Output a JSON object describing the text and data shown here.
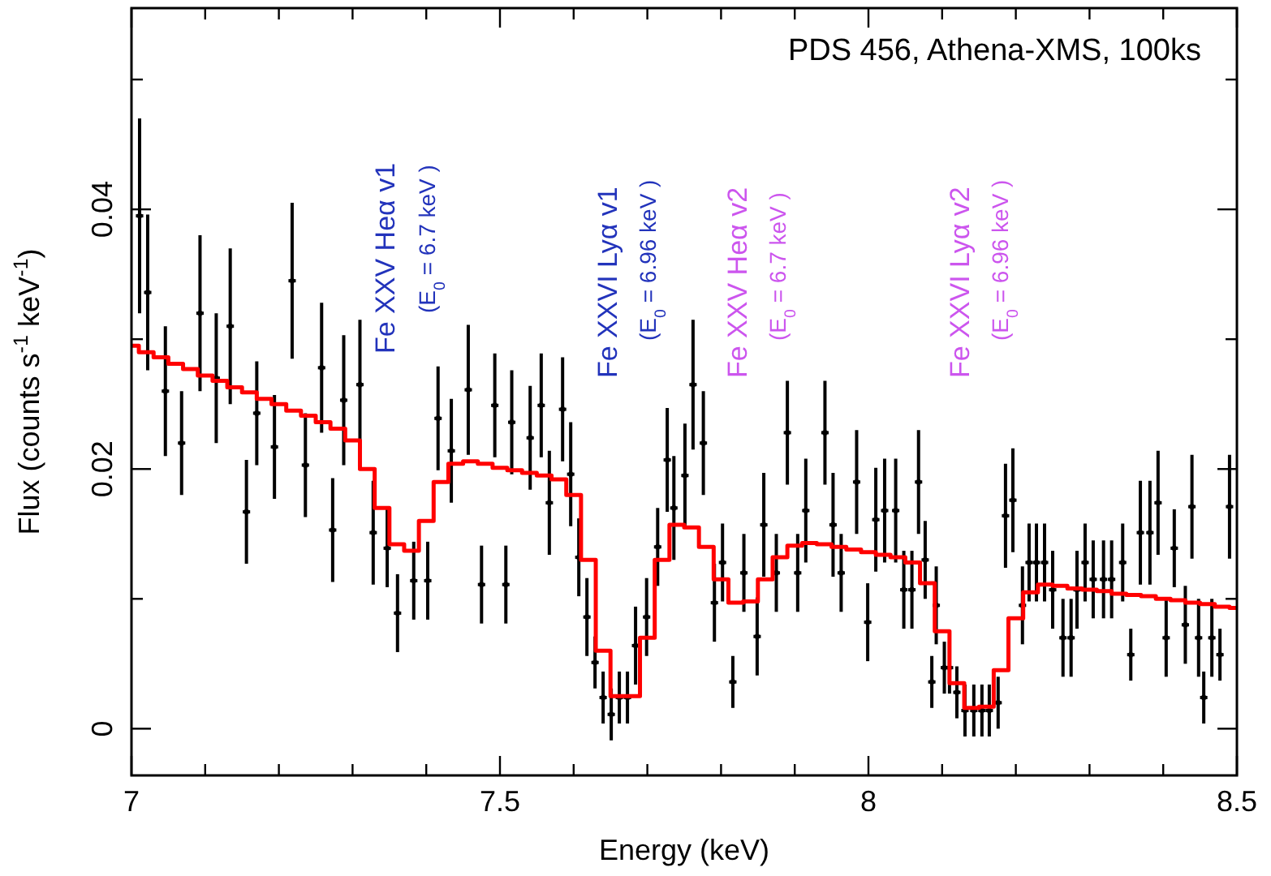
{
  "chart_data": {
    "type": "scatter",
    "title": "PDS 456, Athena-XMS, 100ks",
    "xlabel": "Energy (keV)",
    "ylabel": "Flux (counts s$^{-1}$ keV$^{-1}$)",
    "xlim": [
      7,
      8.5
    ],
    "ylim": [
      -0.0036,
      0.0555
    ],
    "xticks": [
      7,
      {
        "value": 7.1,
        "label": null
      },
      {
        "value": 7.2,
        "label": null
      },
      {
        "value": 7.3,
        "label": null
      },
      {
        "value": 7.4,
        "label": null
      },
      7.5,
      {
        "value": 7.6,
        "label": null
      },
      {
        "value": 7.7,
        "label": null
      },
      {
        "value": 7.8,
        "label": null
      },
      {
        "value": 7.9,
        "label": null
      },
      8,
      {
        "value": 8.1,
        "label": null
      },
      {
        "value": 8.2,
        "label": null
      },
      {
        "value": 8.3,
        "label": null
      },
      {
        "value": 8.4,
        "label": null
      },
      8.5
    ],
    "yticks": [
      0,
      {
        "value": 0.01,
        "label": null
      },
      0.02,
      {
        "value": 0.03,
        "label": null
      },
      0.04,
      {
        "value": 0.05,
        "label": null
      }
    ],
    "annotations": [
      "Fe XXV Heα v1",
      "(E$_{0}$ = 6.7 keV )",
      "Fe XXVI Lyα v1",
      "(E$_{0}$ = 6.96 keV )",
      "Fe XXV Heα v2",
      "(E$_{0}$ = 6.7 keV )",
      "Fe XXVI Lyα v2",
      "(E$_{0}$ = 6.96 keV )"
    ],
    "series": [
      {
        "color": "#000000",
        "marker": "cross",
        "x": [
          7.011,
          7.022,
          7.046,
          7.068,
          7.093,
          7.115,
          7.134,
          7.156,
          7.17,
          7.194,
          7.218,
          7.236,
          7.258,
          7.273,
          7.288,
          7.31,
          7.328,
          7.347,
          7.361,
          7.383,
          7.402,
          7.416,
          7.434,
          7.457,
          7.475,
          7.493,
          7.508,
          7.516,
          7.541,
          7.556,
          7.567,
          7.585,
          7.596,
          7.607,
          7.618,
          7.629,
          7.64,
          7.651,
          7.662,
          7.673,
          7.684,
          7.699,
          7.714,
          7.727,
          7.736,
          7.751,
          7.762,
          7.776,
          7.791,
          7.802,
          7.816,
          7.831,
          7.849,
          7.858,
          7.875,
          7.89,
          7.904,
          7.915,
          7.941,
          7.952,
          7.963,
          7.984,
          7.999,
          8.01,
          8.022,
          8.037,
          8.048,
          8.059,
          8.068,
          8.077,
          8.086,
          8.092,
          8.103,
          8.11,
          8.12,
          8.131,
          8.143,
          8.154,
          8.164,
          8.176,
          8.186,
          8.196,
          8.209,
          8.218,
          8.228,
          8.239,
          8.25,
          8.264,
          8.275,
          8.283,
          8.294,
          8.305,
          8.319,
          8.33,
          8.345,
          8.356,
          8.369,
          8.382,
          8.393,
          8.404,
          8.415,
          8.43,
          8.439,
          8.448,
          8.455,
          8.466,
          8.477,
          8.49
        ],
        "values": [
          0.0395,
          0.0336,
          0.026,
          0.022,
          0.032,
          0.027,
          0.031,
          0.0167,
          0.0243,
          0.0217,
          0.0345,
          0.0203,
          0.0278,
          0.0153,
          0.0253,
          0.0265,
          0.0151,
          0.0139,
          0.0089,
          0.0114,
          0.0114,
          0.0239,
          0.0214,
          0.0261,
          0.0111,
          0.0249,
          0.0111,
          0.0236,
          0.0224,
          0.0249,
          0.0174,
          0.0246,
          0.0196,
          0.0132,
          0.0086,
          0.0051,
          0.0024,
          0.0011,
          0.0024,
          0.0024,
          0.0064,
          0.0086,
          0.014,
          0.0207,
          0.017,
          0.0195,
          0.0265,
          0.022,
          0.0097,
          0.0128,
          0.0036,
          0.012,
          0.0071,
          0.0157,
          0.012,
          0.0228,
          0.012,
          0.0168,
          0.0228,
          0.0157,
          0.012,
          0.019,
          0.0082,
          0.0161,
          0.0168,
          0.0168,
          0.0107,
          0.0107,
          0.019,
          0.013,
          0.0036,
          0.0095,
          0.0047,
          0.0047,
          0.0028,
          0.0014,
          0.0014,
          0.0014,
          0.0014,
          0.002,
          0.0164,
          0.0176,
          0.0095,
          0.0128,
          0.0128,
          0.0128,
          0.0107,
          0.007,
          0.007,
          0.0107,
          0.0128,
          0.0115,
          0.0115,
          0.0115,
          0.0128,
          0.0057,
          0.0151,
          0.0151,
          0.0174,
          0.007,
          0.0139,
          0.008,
          0.0171,
          0.007,
          0.0024,
          0.007,
          0.0057,
          0.0171
        ],
        "errors": [
          0.0075,
          0.006,
          0.005,
          0.004,
          0.006,
          0.005,
          0.006,
          0.004,
          0.004,
          0.004,
          0.006,
          0.004,
          0.005,
          0.004,
          0.005,
          0.005,
          0.004,
          0.003,
          0.003,
          0.003,
          0.003,
          0.004,
          0.004,
          0.005,
          0.003,
          0.004,
          0.003,
          0.004,
          0.004,
          0.004,
          0.004,
          0.004,
          0.004,
          0.003,
          0.003,
          0.002,
          0.002,
          0.002,
          0.002,
          0.002,
          0.003,
          0.003,
          0.003,
          0.004,
          0.004,
          0.004,
          0.005,
          0.004,
          0.003,
          0.003,
          0.002,
          0.003,
          0.003,
          0.004,
          0.003,
          0.004,
          0.003,
          0.004,
          0.004,
          0.004,
          0.003,
          0.004,
          0.003,
          0.004,
          0.004,
          0.004,
          0.003,
          0.003,
          0.004,
          0.003,
          0.002,
          0.003,
          0.002,
          0.002,
          0.002,
          0.002,
          0.002,
          0.002,
          0.002,
          0.002,
          0.004,
          0.004,
          0.003,
          0.003,
          0.003,
          0.003,
          0.003,
          0.003,
          0.003,
          0.003,
          0.003,
          0.003,
          0.003,
          0.003,
          0.003,
          0.002,
          0.004,
          0.004,
          0.004,
          0.003,
          0.003,
          0.003,
          0.004,
          0.003,
          0.002,
          0.003,
          0.002,
          0.004
        ],
        "xerrors": [
          0.005,
          0.005,
          0.005,
          0.005,
          0.005,
          0.005,
          0.005,
          0.005,
          0.005,
          0.005,
          0.005,
          0.005,
          0.005,
          0.005,
          0.005,
          0.005,
          0.005,
          0.005,
          0.005,
          0.005,
          0.005,
          0.005,
          0.005,
          0.005,
          0.005,
          0.005,
          0.005,
          0.005,
          0.005,
          0.005,
          0.005,
          0.005,
          0.005,
          0.005,
          0.005,
          0.005,
          0.005,
          0.005,
          0.005,
          0.005,
          0.005,
          0.005,
          0.005,
          0.005,
          0.005,
          0.005,
          0.005,
          0.005,
          0.005,
          0.005,
          0.005,
          0.005,
          0.005,
          0.005,
          0.005,
          0.005,
          0.005,
          0.005,
          0.005,
          0.005,
          0.005,
          0.005,
          0.005,
          0.005,
          0.005,
          0.005,
          0.005,
          0.005,
          0.005,
          0.005,
          0.005,
          0.005,
          0.005,
          0.005,
          0.005,
          0.005,
          0.005,
          0.005,
          0.005,
          0.005,
          0.005,
          0.005,
          0.005,
          0.005,
          0.005,
          0.005,
          0.005,
          0.005,
          0.005,
          0.005,
          0.005,
          0.005,
          0.005,
          0.005,
          0.005,
          0.005,
          0.005,
          0.005,
          0.005,
          0.005,
          0.005,
          0.005,
          0.005,
          0.005,
          0.005,
          0.005,
          0.005,
          0.005
        ]
      },
      {
        "type": "step",
        "color": "#ff0000",
        "x": [
          7,
          7.02,
          7.04,
          7.06,
          7.08,
          7.1,
          7.12,
          7.14,
          7.16,
          7.18,
          7.2,
          7.22,
          7.24,
          7.26,
          7.28,
          7.3,
          7.32,
          7.34,
          7.36,
          7.38,
          7.4,
          7.42,
          7.44,
          7.46,
          7.48,
          7.5,
          7.52,
          7.54,
          7.56,
          7.58,
          7.6,
          7.62,
          7.64,
          7.66,
          7.68,
          7.7,
          7.72,
          7.74,
          7.76,
          7.78,
          7.8,
          7.82,
          7.84,
          7.86,
          7.88,
          7.9,
          7.92,
          7.94,
          7.96,
          7.98,
          8,
          8.02,
          8.04,
          8.06,
          8.08,
          8.1,
          8.12,
          8.14,
          8.16,
          8.18,
          8.2,
          8.22,
          8.24,
          8.26,
          8.28,
          8.3,
          8.32,
          8.34,
          8.36,
          8.38,
          8.4,
          8.42,
          8.44,
          8.46,
          8.48,
          8.5
        ],
        "values": [
          0.0295,
          0.029,
          0.0286,
          0.0281,
          0.0277,
          0.0272,
          0.0268,
          0.0263,
          0.0259,
          0.0254,
          0.025,
          0.0245,
          0.0241,
          0.0236,
          0.0231,
          0.0222,
          0.02,
          0.017,
          0.0142,
          0.0137,
          0.016,
          0.019,
          0.0204,
          0.0206,
          0.0204,
          0.0201,
          0.0199,
          0.0197,
          0.0195,
          0.0192,
          0.018,
          0.013,
          0.006,
          0.0025,
          0.0025,
          0.007,
          0.013,
          0.0157,
          0.0155,
          0.014,
          0.0115,
          0.0097,
          0.0098,
          0.0115,
          0.0132,
          0.0141,
          0.0143,
          0.0142,
          0.014,
          0.0138,
          0.0136,
          0.0134,
          0.0132,
          0.0128,
          0.0112,
          0.0075,
          0.0035,
          0.0016,
          0.0017,
          0.0045,
          0.0085,
          0.0105,
          0.0111,
          0.011,
          0.0108,
          0.0107,
          0.0106,
          0.0104,
          0.0103,
          0.0102,
          0.01,
          0.0099,
          0.0097,
          0.0096,
          0.0094,
          0.0093
        ]
      }
    ]
  }
}
